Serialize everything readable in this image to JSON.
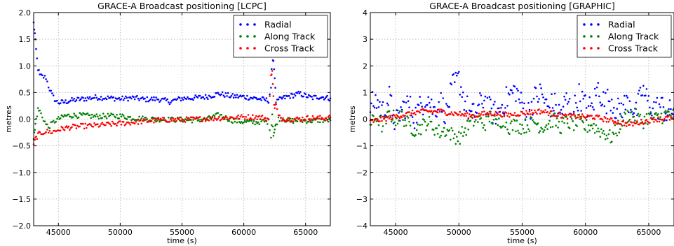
{
  "chart_data": [
    {
      "type": "scatter",
      "title": "GRACE-A Broadcast positioning [LCPC]",
      "xlabel": "time (s)",
      "ylabel": "metres",
      "xlim": [
        43000,
        67000
      ],
      "ylim": [
        -2.0,
        2.0
      ],
      "xticks": [
        45000,
        50000,
        55000,
        60000,
        65000
      ],
      "xtick_labels": [
        "45000",
        "50000",
        "55000",
        "60000",
        "65000"
      ],
      "yticks": [
        -2.0,
        -1.5,
        -1.0,
        -0.5,
        0.0,
        0.5,
        1.0,
        1.5,
        2.0
      ],
      "ytick_labels": [
        "−2.0",
        "−1.5",
        "−1.0",
        "−0.5",
        "0.0",
        "0.5",
        "1.0",
        "1.5",
        "2.0"
      ],
      "grid": true,
      "legend": "top-right",
      "series": [
        {
          "name": "Radial",
          "color": "#0000ff",
          "x": [
            43000,
            43100,
            43200,
            43350,
            43500,
            43700,
            44000,
            44200,
            44500,
            44800,
            45000,
            45500,
            46000,
            47000,
            48000,
            49000,
            50000,
            51000,
            52000,
            53000,
            54000,
            55000,
            56000,
            57000,
            58000,
            59000,
            60000,
            61000,
            61500,
            62000,
            62200,
            62300,
            62400,
            62500,
            62600,
            62800,
            63000,
            63500,
            64000,
            64500,
            65000,
            65500,
            66000,
            66500,
            67000
          ],
          "y": [
            1.8,
            1.6,
            1.3,
            0.95,
            0.82,
            0.8,
            0.78,
            0.62,
            0.45,
            0.34,
            0.31,
            0.32,
            0.35,
            0.38,
            0.41,
            0.4,
            0.38,
            0.4,
            0.37,
            0.38,
            0.33,
            0.39,
            0.4,
            0.42,
            0.48,
            0.43,
            0.42,
            0.39,
            0.37,
            0.35,
            0.6,
            1.2,
            1.1,
            0.8,
            0.3,
            0.35,
            0.38,
            0.42,
            0.45,
            0.48,
            0.44,
            0.4,
            0.42,
            0.41,
            0.39
          ]
        },
        {
          "name": "Along Track",
          "color": "#008000",
          "x": [
            43000,
            43100,
            43200,
            43350,
            43500,
            43700,
            44000,
            44200,
            44500,
            44800,
            45000,
            45500,
            46000,
            47000,
            48000,
            49000,
            50000,
            51000,
            52000,
            53000,
            54000,
            55000,
            56000,
            57000,
            58000,
            59000,
            60000,
            61000,
            61500,
            62000,
            62200,
            62300,
            62400,
            62500,
            62600,
            62800,
            63000,
            63500,
            64000,
            64500,
            65000,
            65500,
            66000,
            66500,
            67000
          ],
          "y": [
            -0.35,
            -0.2,
            0.0,
            0.18,
            0.15,
            0.05,
            -0.1,
            -0.15,
            -0.08,
            -0.02,
            0.0,
            0.06,
            0.07,
            0.07,
            0.05,
            0.06,
            0.06,
            0.02,
            0.01,
            0.0,
            -0.01,
            -0.01,
            -0.02,
            0.0,
            0.08,
            -0.02,
            -0.05,
            -0.06,
            -0.04,
            -0.05,
            -0.3,
            0.1,
            -0.3,
            -0.2,
            -0.1,
            0.0,
            0.02,
            -0.02,
            -0.03,
            -0.02,
            -0.03,
            -0.03,
            -0.02,
            -0.02,
            -0.02
          ]
        },
        {
          "name": "Cross Track",
          "color": "#ff0000",
          "x": [
            43000,
            43100,
            43200,
            43350,
            43500,
            43700,
            44000,
            44200,
            44500,
            44800,
            45000,
            45500,
            46000,
            47000,
            48000,
            49000,
            50000,
            51000,
            52000,
            53000,
            54000,
            55000,
            56000,
            57000,
            58000,
            59000,
            60000,
            61000,
            61500,
            62000,
            62200,
            62300,
            62400,
            62500,
            62600,
            62800,
            63000,
            63500,
            64000,
            64500,
            65000,
            65500,
            66000,
            66500,
            67000
          ],
          "y": [
            -0.45,
            -0.4,
            -0.35,
            -0.3,
            -0.27,
            -0.25,
            -0.23,
            -0.24,
            -0.24,
            -0.22,
            -0.2,
            -0.17,
            -0.15,
            -0.13,
            -0.12,
            -0.1,
            -0.08,
            -0.06,
            -0.04,
            -0.02,
            -0.01,
            -0.01,
            0.0,
            0.01,
            0.02,
            0.03,
            0.04,
            0.04,
            0.03,
            0.0,
            0.8,
            0.95,
            0.4,
            0.2,
            0.3,
            0.05,
            0.02,
            0.0,
            0.0,
            0.0,
            0.02,
            0.02,
            0.02,
            0.02,
            0.03
          ]
        }
      ]
    },
    {
      "type": "scatter",
      "title": "GRACE-A Broadcast positioning [GRAPHIC]",
      "xlabel": "time (s)",
      "ylabel": "metres",
      "xlim": [
        43000,
        67000
      ],
      "ylim": [
        -4,
        4
      ],
      "xticks": [
        45000,
        50000,
        55000,
        60000,
        65000
      ],
      "xtick_labels": [
        "45000",
        "50000",
        "55000",
        "60000",
        "65000"
      ],
      "yticks": [
        -4,
        -3,
        -2,
        -1,
        0,
        1,
        2,
        3,
        4
      ],
      "ytick_labels": [
        "−4",
        "−3",
        "−2",
        "−1",
        "0",
        "1",
        "2",
        "3",
        "4"
      ],
      "grid": true,
      "legend": "top-right",
      "series": [
        {
          "name": "Radial",
          "color": "#0000ff",
          "x": [
            43000,
            43500,
            44000,
            44500,
            45000,
            45500,
            46000,
            46500,
            47000,
            47500,
            48000,
            48500,
            49000,
            49500,
            50000,
            50500,
            51000,
            51500,
            52000,
            52500,
            53000,
            53500,
            54000,
            54500,
            55000,
            55500,
            56000,
            56500,
            57000,
            57500,
            58000,
            58500,
            59000,
            59500,
            60000,
            60500,
            61000,
            61500,
            62000,
            62500,
            63000,
            63500,
            64000,
            64500,
            65000,
            65500,
            66000,
            66500,
            67000
          ],
          "y": [
            0.5,
            0.7,
            0.3,
            0.8,
            -0.2,
            0.4,
            0.6,
            0.1,
            0.5,
            0.9,
            0.3,
            0.7,
            0.2,
            1.2,
            1.5,
            0.6,
            0.1,
            0.4,
            0.8,
            0.3,
            0.2,
            0.6,
            0.9,
            1.1,
            0.5,
            0.3,
            0.8,
            1.0,
            0.4,
            0.6,
            0.2,
            0.7,
            0.3,
            0.9,
            0.5,
            0.4,
            1.2,
            0.6,
            0.8,
            0.3,
            0.5,
            0.7,
            0.2,
            1.1,
            0.6,
            0.4,
            0.5,
            0.2,
            0.4
          ]
        },
        {
          "name": "Along Track",
          "color": "#008000",
          "x": [
            43000,
            43500,
            44000,
            44500,
            45000,
            45500,
            46000,
            46500,
            47000,
            47500,
            48000,
            48500,
            49000,
            49500,
            50000,
            50500,
            51000,
            51500,
            52000,
            52500,
            53000,
            53500,
            54000,
            54500,
            55000,
            55500,
            56000,
            56500,
            57000,
            57500,
            58000,
            58500,
            59000,
            59500,
            60000,
            60500,
            61000,
            61500,
            62000,
            62500,
            63000,
            63500,
            64000,
            64500,
            65000,
            65500,
            66000,
            66500,
            67000
          ],
          "y": [
            -0.2,
            0.1,
            -0.3,
            0.2,
            0.0,
            0.1,
            -0.2,
            -0.4,
            -0.3,
            -0.1,
            -0.3,
            -0.5,
            -0.4,
            -0.6,
            -0.7,
            -0.4,
            -0.1,
            0.0,
            -0.2,
            0.1,
            -0.2,
            0.0,
            -0.3,
            -0.2,
            -0.3,
            -0.2,
            -0.1,
            -0.3,
            -0.2,
            0.0,
            -0.3,
            -0.1,
            -0.2,
            -0.1,
            -0.3,
            -0.2,
            -0.4,
            -0.5,
            -0.7,
            -0.4,
            0.0,
            0.2,
            0.1,
            -0.1,
            0.1,
            0.0,
            0.1,
            0.2,
            0.1
          ]
        },
        {
          "name": "Cross Track",
          "color": "#ff0000",
          "x": [
            43000,
            43500,
            44000,
            44500,
            45000,
            45500,
            46000,
            46500,
            47000,
            47500,
            48000,
            48500,
            49000,
            49500,
            50000,
            50500,
            51000,
            51500,
            52000,
            52500,
            53000,
            53500,
            54000,
            54500,
            55000,
            55500,
            56000,
            56500,
            57000,
            57500,
            58000,
            58500,
            59000,
            59500,
            60000,
            60500,
            61000,
            61500,
            62000,
            62500,
            63000,
            63500,
            64000,
            64500,
            65000,
            65500,
            66000,
            66500,
            67000
          ],
          "y": [
            -0.1,
            -0.05,
            0.0,
            0.05,
            0.1,
            0.15,
            0.2,
            0.25,
            0.28,
            0.3,
            0.28,
            0.3,
            0.25,
            0.22,
            0.2,
            0.15,
            0.12,
            0.15,
            0.2,
            0.22,
            0.2,
            0.18,
            0.15,
            0.2,
            0.22,
            0.25,
            0.28,
            0.3,
            0.25,
            0.2,
            0.15,
            0.1,
            0.12,
            0.1,
            0.08,
            0.1,
            0.05,
            0.0,
            -0.05,
            -0.1,
            -0.15,
            -0.2,
            -0.15,
            -0.1,
            -0.05,
            0.0,
            0.0,
            0.05,
            0.0
          ]
        }
      ]
    }
  ]
}
